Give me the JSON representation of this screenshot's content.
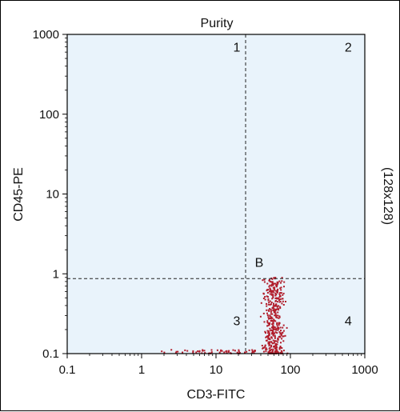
{
  "chart_data": {
    "type": "scatter",
    "title": "Purity",
    "xlabel": "CD3-FITC",
    "ylabel": "CD45-PE",
    "side_label": "(128x128)",
    "x_scale": "log",
    "y_scale": "log",
    "xlim": [
      0.1,
      1000
    ],
    "ylim": [
      0.1,
      1000
    ],
    "x_ticks": [
      {
        "value": 0.1,
        "label": "0.1"
      },
      {
        "value": 1,
        "label": "1"
      },
      {
        "value": 10,
        "label": "10"
      },
      {
        "value": 100,
        "label": "100"
      },
      {
        "value": 1000,
        "label": "1000"
      }
    ],
    "y_ticks": [
      {
        "value": 0.1,
        "label": "0.1"
      },
      {
        "value": 1,
        "label": "1"
      },
      {
        "value": 10,
        "label": "10"
      },
      {
        "value": 100,
        "label": "100"
      },
      {
        "value": 1000,
        "label": "1000"
      }
    ],
    "gates": {
      "x": 25,
      "y": 0.87,
      "label": "B"
    },
    "quadrants": [
      {
        "label": "1",
        "x": 19,
        "y": 700
      },
      {
        "label": "2",
        "x": 600,
        "y": 700
      },
      {
        "label": "3",
        "x": 19,
        "y": 0.26
      },
      {
        "label": "4",
        "x": 600,
        "y": 0.26
      }
    ],
    "gate_label_position": {
      "x": 38,
      "y": 1.4
    },
    "colors": {
      "plot_background": "#e9f3fb",
      "points": "#b11d2b",
      "lines": "#222222"
    },
    "points": {
      "cluster": {
        "x_range": [
          38,
          95
        ],
        "y_range": [
          0.1,
          0.9
        ],
        "count": 420
      },
      "tail": {
        "x_range": [
          1.5,
          35
        ],
        "y_range": [
          0.1,
          0.12
        ],
        "count": 60
      }
    }
  }
}
